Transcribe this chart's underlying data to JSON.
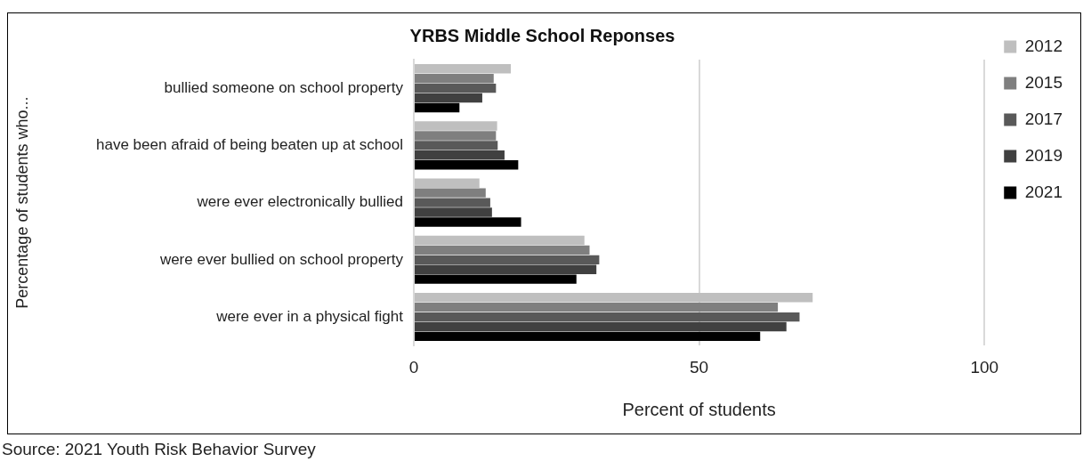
{
  "chart_data": {
    "type": "bar",
    "orientation": "horizontal",
    "title": "YRBS Middle School Reponses",
    "xlabel": "Percent of students",
    "ylabel": "Percentage of students who...",
    "categories": [
      "bullied someone on school property",
      "have been afraid of being beaten up at school",
      "were ever electronically bullied",
      "were ever bullied on school property",
      "were ever in a physical fight"
    ],
    "series": [
      {
        "name": "2012",
        "color": "#bfbfbf",
        "values": [
          17,
          14.6,
          11.5,
          29.9,
          69.9
        ]
      },
      {
        "name": "2015",
        "color": "#7f7f7f",
        "values": [
          14,
          14.4,
          12.6,
          30.8,
          63.8
        ]
      },
      {
        "name": "2017",
        "color": "#595959",
        "values": [
          14.4,
          14.7,
          13.4,
          32.5,
          67.6
        ]
      },
      {
        "name": "2019",
        "color": "#404040",
        "values": [
          12,
          15.9,
          13.7,
          32,
          65.3
        ]
      },
      {
        "name": "2021",
        "color": "#000000",
        "values": [
          8,
          18.3,
          18.8,
          28.5,
          60.7
        ]
      }
    ],
    "xlim": [
      0,
      100
    ],
    "xticks": [
      0,
      50,
      100
    ],
    "grid": "x",
    "legend": "top right",
    "annotations": [
      "Source: 2021 Youth Risk Behavior Survey"
    ]
  }
}
